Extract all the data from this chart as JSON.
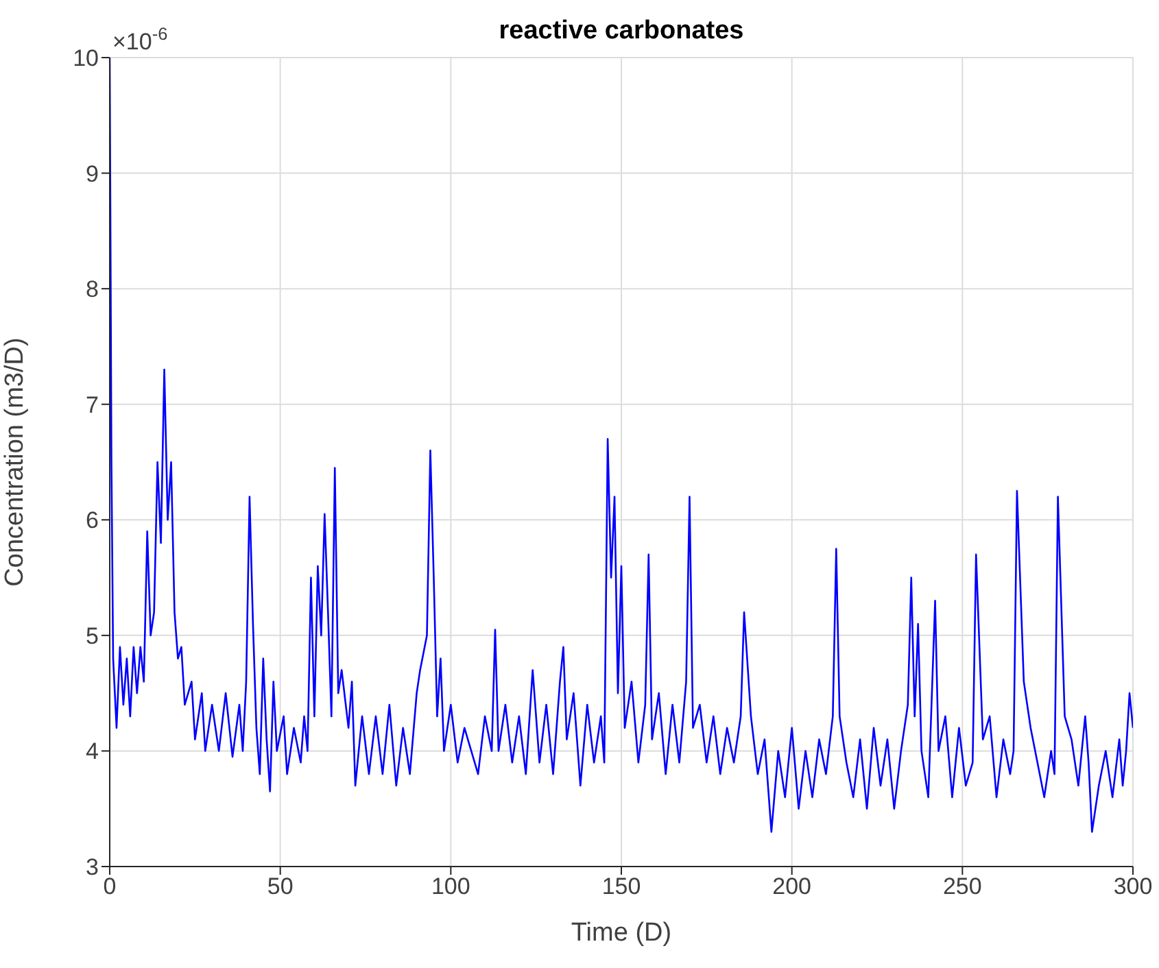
{
  "chart_data": {
    "type": "line",
    "title": "reactive carbonates",
    "xlabel": "Time (D)",
    "ylabel": "Concentration (m3/D)",
    "annotations": [
      "×10$^{-6}$"
    ],
    "xlim": [
      0,
      300
    ],
    "xticks": [
      0,
      50,
      100,
      150,
      200,
      250,
      300
    ],
    "ylim": [
      3,
      10
    ],
    "yticks": [
      3,
      4,
      5,
      6,
      7,
      8,
      9,
      10
    ],
    "grid": true,
    "series": [
      {
        "color": "#0000ff",
        "x": [
          0,
          0.5,
          1,
          2,
          3,
          4,
          5,
          6,
          7,
          8,
          9,
          10,
          11,
          12,
          13,
          14,
          15,
          16,
          17,
          18,
          19,
          20,
          21,
          22,
          24,
          25,
          27,
          28,
          30,
          32,
          34,
          36,
          38,
          39,
          40,
          41,
          42,
          43,
          44,
          45,
          46,
          47,
          48,
          49,
          51,
          52,
          54,
          56,
          57,
          58,
          59,
          60,
          61,
          62,
          63,
          64,
          65,
          66,
          67,
          68,
          70,
          71,
          72,
          74,
          76,
          78,
          80,
          82,
          84,
          86,
          88,
          90,
          91,
          93,
          94,
          95,
          96,
          97,
          98,
          100,
          102,
          104,
          106,
          108,
          110,
          112,
          113,
          114,
          116,
          118,
          120,
          122,
          124,
          126,
          128,
          130,
          132,
          133,
          134,
          136,
          138,
          140,
          142,
          144,
          145,
          146,
          147,
          148,
          149,
          150,
          151,
          153,
          155,
          157,
          158,
          159,
          161,
          163,
          165,
          167,
          169,
          170,
          171,
          173,
          175,
          177,
          179,
          181,
          183,
          185,
          186,
          188,
          190,
          192,
          194,
          196,
          198,
          200,
          202,
          204,
          206,
          208,
          210,
          212,
          213,
          214,
          216,
          218,
          220,
          222,
          224,
          226,
          228,
          230,
          232,
          234,
          235,
          236,
          237,
          238,
          240,
          242,
          243,
          245,
          247,
          249,
          251,
          253,
          254,
          256,
          258,
          260,
          262,
          264,
          265,
          266,
          268,
          270,
          272,
          274,
          276,
          277,
          278,
          280,
          282,
          284,
          286,
          287,
          288,
          290,
          292,
          294,
          296,
          297,
          298,
          299,
          300
        ],
        "values": [
          10,
          6.5,
          4.8,
          4.2,
          4.9,
          4.4,
          4.8,
          4.3,
          4.9,
          4.5,
          4.9,
          4.6,
          5.9,
          5.0,
          5.2,
          6.5,
          5.8,
          7.3,
          6.0,
          6.5,
          5.2,
          4.8,
          4.9,
          4.4,
          4.6,
          4.1,
          4.5,
          4.0,
          4.4,
          4.0,
          4.5,
          3.95,
          4.4,
          4.0,
          4.6,
          6.2,
          5.1,
          4.2,
          3.8,
          4.8,
          4.1,
          3.65,
          4.6,
          4.0,
          4.3,
          3.8,
          4.2,
          3.9,
          4.3,
          4.0,
          5.5,
          4.3,
          5.6,
          5.0,
          6.05,
          5.2,
          4.3,
          6.45,
          4.5,
          4.7,
          4.2,
          4.6,
          3.7,
          4.3,
          3.8,
          4.3,
          3.8,
          4.4,
          3.7,
          4.2,
          3.8,
          4.5,
          4.7,
          5.0,
          6.6,
          5.5,
          4.3,
          4.8,
          4.0,
          4.4,
          3.9,
          4.2,
          4.0,
          3.8,
          4.3,
          4.0,
          5.05,
          4.0,
          4.4,
          3.9,
          4.3,
          3.8,
          4.7,
          3.9,
          4.4,
          3.8,
          4.6,
          4.9,
          4.1,
          4.5,
          3.7,
          4.4,
          3.9,
          4.3,
          3.9,
          6.7,
          5.5,
          6.2,
          4.5,
          5.6,
          4.2,
          4.6,
          3.9,
          4.4,
          5.7,
          4.1,
          4.5,
          3.8,
          4.4,
          3.9,
          4.6,
          6.2,
          4.2,
          4.4,
          3.9,
          4.3,
          3.8,
          4.2,
          3.9,
          4.3,
          5.2,
          4.3,
          3.8,
          4.1,
          3.3,
          4.0,
          3.6,
          4.2,
          3.5,
          4.0,
          3.6,
          4.1,
          3.8,
          4.3,
          5.75,
          4.3,
          3.9,
          3.6,
          4.1,
          3.5,
          4.2,
          3.7,
          4.1,
          3.5,
          4.0,
          4.4,
          5.5,
          4.3,
          5.1,
          4.0,
          3.6,
          5.3,
          4.0,
          4.3,
          3.6,
          4.2,
          3.7,
          3.9,
          5.7,
          4.1,
          4.3,
          3.6,
          4.1,
          3.8,
          4.0,
          6.25,
          4.6,
          4.2,
          3.9,
          3.6,
          4.0,
          3.8,
          6.2,
          4.3,
          4.1,
          3.7,
          4.3,
          3.9,
          3.3,
          3.7,
          4.0,
          3.6,
          4.1,
          3.7,
          4.0,
          4.5,
          4.2
        ]
      }
    ]
  }
}
